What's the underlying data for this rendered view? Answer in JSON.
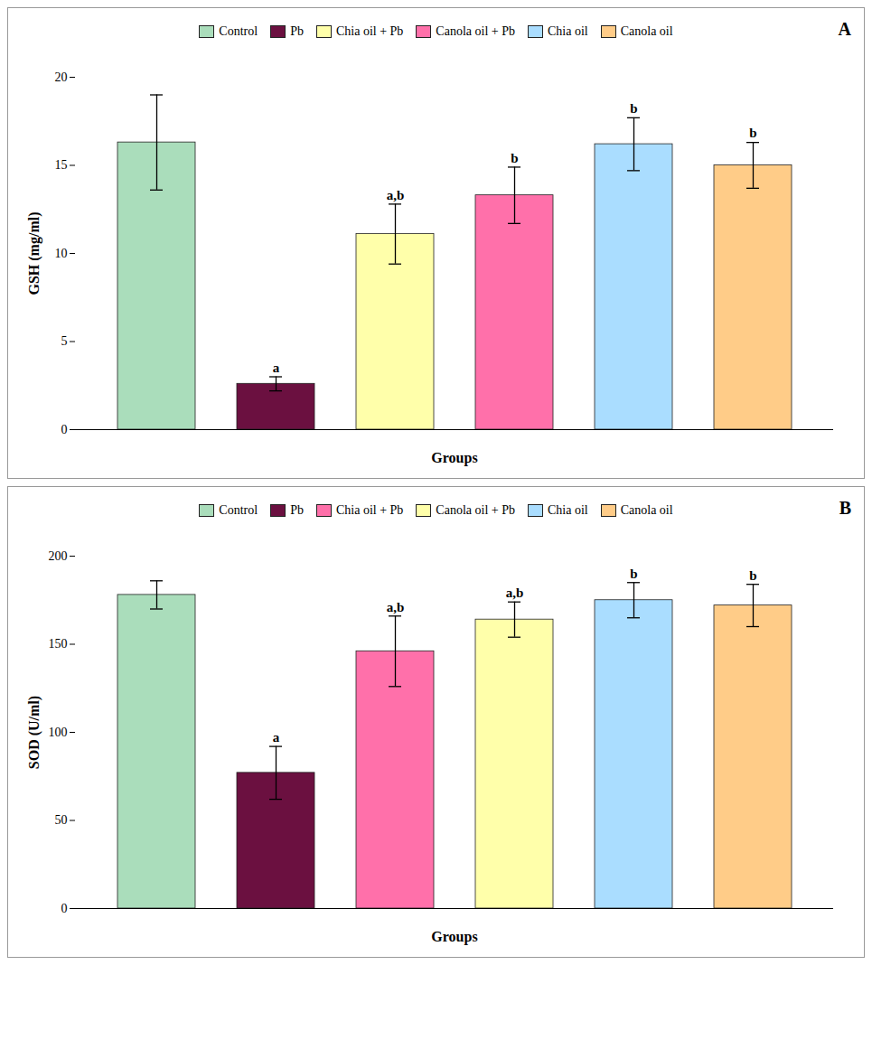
{
  "chart_data": [
    {
      "type": "bar",
      "title": "A",
      "xlabel": "Groups",
      "ylabel": "GSH (mg/ml)",
      "categories": [
        "Control",
        "Pb",
        "Chia oil + Pb",
        "Canola oil + Pb",
        "Chia oil",
        "Canola oil"
      ],
      "values": [
        16.3,
        2.6,
        11.1,
        13.3,
        16.2,
        15.0
      ],
      "errors": [
        2.7,
        0.4,
        1.7,
        1.6,
        1.5,
        1.3
      ],
      "significance": [
        null,
        "a",
        "a,b",
        "b",
        "b",
        "b"
      ],
      "colors": [
        "#aaddbb",
        "#6b1040",
        "#ffffaa",
        "#ff70aa",
        "#aaddff",
        "#ffcc88"
      ],
      "ylim": [
        0,
        20
      ],
      "yticks": [
        0,
        5,
        10,
        15,
        20
      ],
      "grid": false,
      "legend": "top",
      "tick_labels": "y"
    },
    {
      "type": "bar",
      "title": "B",
      "xlabel": "Groups",
      "ylabel": "SOD (U/ml)",
      "categories": [
        "Control",
        "Pb",
        "Chia oil + Pb",
        "Canola oil + Pb",
        "Chia oil",
        "Canola oil"
      ],
      "values": [
        178.0,
        77.0,
        146.0,
        164.0,
        175.0,
        172.0
      ],
      "errors": [
        8.0,
        15.0,
        20.0,
        10.0,
        10.0,
        12.0
      ],
      "significance": [
        null,
        "a",
        "a,b",
        "a,b",
        "b",
        "b"
      ],
      "colors": [
        "#aaddbb",
        "#6b1040",
        "#ff70aa",
        "#ffffaa",
        "#aaddff",
        "#ffcc88"
      ],
      "ylim": [
        0,
        200
      ],
      "yticks": [
        0,
        50,
        100,
        150,
        200
      ],
      "grid": false,
      "legend": "top",
      "tick_labels": "y"
    }
  ]
}
